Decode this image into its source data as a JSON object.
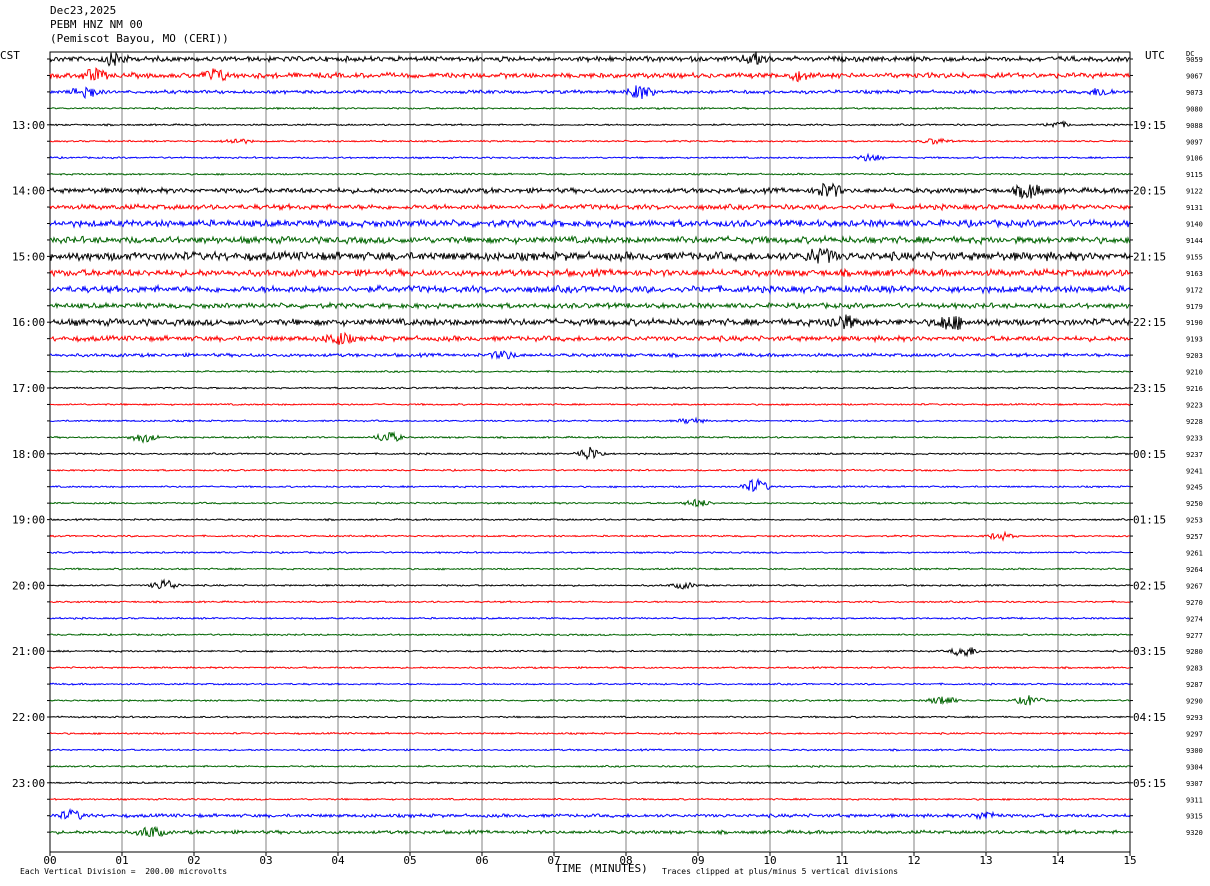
{
  "header": {
    "date": "Dec23,2025",
    "station": "PEBM HNZ NM 00",
    "location": "(Pemiscot Bayou, MO (CERI))"
  },
  "corners": {
    "left": "CST",
    "right": "UTC",
    "counts_label": "DC"
  },
  "footer": {
    "scale": "Each Vertical Division =  200.00 microvolts",
    "clip": "Traces clipped at plus/minus 5 vertical divisions"
  },
  "chart_data": {
    "type": "line",
    "title": "Dec23,2025 PEBM HNZ NM 00 (Pemiscot Bayou, MO (CERI))",
    "xlabel": "TIME (MINUTES)",
    "ylabel": "",
    "x_ticks": [
      "00",
      "01",
      "02",
      "03",
      "04",
      "05",
      "06",
      "07",
      "08",
      "09",
      "10",
      "11",
      "12",
      "13",
      "14",
      "15"
    ],
    "xlim": [
      0,
      15
    ],
    "line_colors": [
      "#000000",
      "#ff0000",
      "#0000ff",
      "#006400"
    ],
    "left_hour_labels": [
      {
        "row": 4,
        "text": "13:00"
      },
      {
        "row": 8,
        "text": "14:00"
      },
      {
        "row": 12,
        "text": "15:00"
      },
      {
        "row": 16,
        "text": "16:00"
      },
      {
        "row": 20,
        "text": "17:00"
      },
      {
        "row": 24,
        "text": "18:00"
      },
      {
        "row": 28,
        "text": "19:00"
      },
      {
        "row": 32,
        "text": "20:00"
      },
      {
        "row": 36,
        "text": "21:00"
      },
      {
        "row": 40,
        "text": "22:00"
      },
      {
        "row": 44,
        "text": "23:00"
      }
    ],
    "right_hour_labels": [
      {
        "row": 4,
        "text": "19:15"
      },
      {
        "row": 8,
        "text": "20:15"
      },
      {
        "row": 12,
        "text": "21:15"
      },
      {
        "row": 16,
        "text": "22:15"
      },
      {
        "row": 20,
        "text": "23:15"
      },
      {
        "row": 24,
        "text": "00:15"
      },
      {
        "row": 28,
        "text": "01:15"
      },
      {
        "row": 32,
        "text": "02:15"
      },
      {
        "row": 36,
        "text": "03:15"
      },
      {
        "row": 40,
        "text": "04:15"
      },
      {
        "row": 44,
        "text": "05:15"
      }
    ],
    "trace_counts": [
      "9059",
      "9067",
      "9073",
      "9080",
      "9088",
      "9097",
      "9106",
      "9115",
      "9122",
      "9131",
      "9140",
      "9144",
      "9155",
      "9163",
      "9172",
      "9179",
      "9190",
      "9193",
      "9203",
      "9210",
      "9216",
      "9223",
      "9228",
      "9233",
      "9237",
      "9241",
      "9245",
      "9250",
      "9253",
      "9257",
      "9261",
      "9264",
      "9267",
      "9270",
      "9274",
      "9277",
      "9280",
      "9283",
      "9287",
      "9290",
      "9293",
      "9297",
      "9300",
      "9304",
      "9307",
      "9311",
      "9315",
      "9320"
    ],
    "trace_amplitude": [
      3,
      3,
      2,
      1,
      1,
      1,
      1,
      1,
      3,
      3,
      4,
      4,
      5,
      4,
      4,
      3,
      4,
      3,
      2,
      1,
      1,
      1,
      1,
      1,
      1,
      1,
      1,
      1,
      1,
      1,
      1,
      1,
      1,
      1,
      1,
      1,
      1,
      1,
      1,
      1,
      1,
      1,
      1,
      1,
      1,
      1,
      2,
      2
    ],
    "events": [
      {
        "row": 0,
        "minute": 0.9,
        "amp": 6
      },
      {
        "row": 0,
        "minute": 9.8,
        "amp": 6
      },
      {
        "row": 1,
        "minute": 0.6,
        "amp": 6
      },
      {
        "row": 1,
        "minute": 2.3,
        "amp": 6
      },
      {
        "row": 1,
        "minute": 10.4,
        "amp": 4
      },
      {
        "row": 2,
        "minute": 0.5,
        "amp": 7
      },
      {
        "row": 2,
        "minute": 8.2,
        "amp": 7
      },
      {
        "row": 2,
        "minute": 14.6,
        "amp": 4
      },
      {
        "row": 4,
        "minute": 14.0,
        "amp": 3
      },
      {
        "row": 5,
        "minute": 2.6,
        "amp": 3
      },
      {
        "row": 5,
        "minute": 12.3,
        "amp": 3
      },
      {
        "row": 6,
        "minute": 11.4,
        "amp": 4
      },
      {
        "row": 8,
        "minute": 10.8,
        "amp": 8
      },
      {
        "row": 8,
        "minute": 13.6,
        "amp": 8
      },
      {
        "row": 12,
        "minute": 10.7,
        "amp": 10
      },
      {
        "row": 16,
        "minute": 11.0,
        "amp": 9
      },
      {
        "row": 16,
        "minute": 12.5,
        "amp": 9
      },
      {
        "row": 17,
        "minute": 4.0,
        "amp": 6
      },
      {
        "row": 18,
        "minute": 6.3,
        "amp": 4
      },
      {
        "row": 22,
        "minute": 8.9,
        "amp": 3
      },
      {
        "row": 23,
        "minute": 1.3,
        "amp": 5
      },
      {
        "row": 23,
        "minute": 4.7,
        "amp": 6
      },
      {
        "row": 24,
        "minute": 7.5,
        "amp": 7
      },
      {
        "row": 26,
        "minute": 9.8,
        "amp": 8
      },
      {
        "row": 27,
        "minute": 9.0,
        "amp": 4
      },
      {
        "row": 29,
        "minute": 13.2,
        "amp": 4
      },
      {
        "row": 32,
        "minute": 1.6,
        "amp": 6
      },
      {
        "row": 32,
        "minute": 8.8,
        "amp": 3
      },
      {
        "row": 36,
        "minute": 12.7,
        "amp": 6
      },
      {
        "row": 39,
        "minute": 12.4,
        "amp": 5
      },
      {
        "row": 39,
        "minute": 13.6,
        "amp": 5
      },
      {
        "row": 46,
        "minute": 0.3,
        "amp": 5
      },
      {
        "row": 46,
        "minute": 13.0,
        "amp": 4
      },
      {
        "row": 47,
        "minute": 1.4,
        "amp": 6
      }
    ]
  }
}
